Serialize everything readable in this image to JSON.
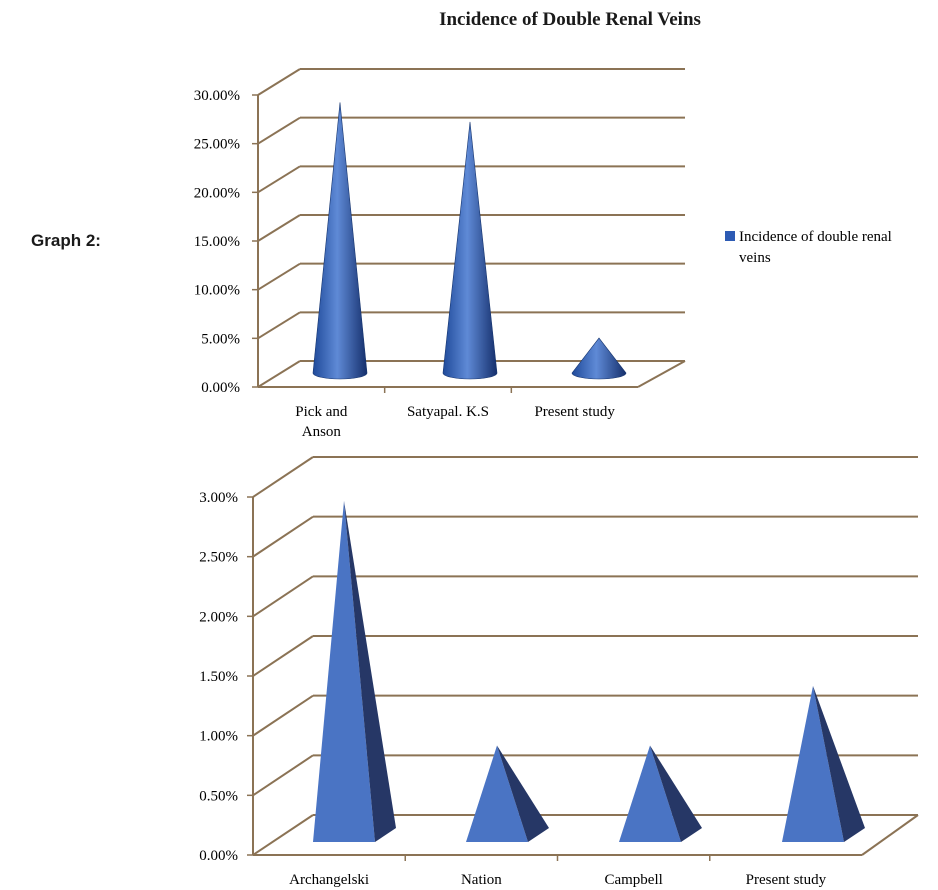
{
  "figure": {
    "title": "Incidence of Double Renal Veins",
    "graph_label": "Graph 2:"
  },
  "colors": {
    "grid": "#8b7355",
    "cone_light": "#6f95d6",
    "cone_mid": "#2d5bb4",
    "cone_dark": "#13306e",
    "pyramid_front": "#4a74c4",
    "pyramid_side": "#263766"
  },
  "chart_data": [
    {
      "type": "bar",
      "shape": "cone",
      "title": "",
      "categories": [
        [
          "Pick and",
          "Anson"
        ],
        [
          "Satyapal. K.S"
        ],
        [
          "Present study"
        ]
      ],
      "series": [
        {
          "name": "Incidence of double renal veins",
          "values": [
            0.28,
            0.26,
            0.038
          ]
        }
      ],
      "ylim": [
        0,
        0.3
      ],
      "yticks": [
        "0.00%",
        "5.00%",
        "10.00%",
        "15.00%",
        "20.00%",
        "25.00%",
        "30.00%"
      ],
      "grid": true,
      "legend_position": "right",
      "legend": {
        "label_lines": [
          "Incidence of double renal",
          "veins"
        ]
      }
    },
    {
      "type": "bar",
      "shape": "pyramid",
      "title": "",
      "categories": [
        [
          "Archangelski"
        ],
        [
          "Nation"
        ],
        [
          "Campbell"
        ],
        [
          "Present study"
        ]
      ],
      "series": [
        {
          "values": [
            0.028,
            0.0075,
            0.0075,
            0.0125
          ]
        }
      ],
      "ylim": [
        0,
        0.03
      ],
      "yticks": [
        "0.00%",
        "0.50%",
        "1.00%",
        "1.50%",
        "2.00%",
        "2.50%",
        "3.00%"
      ],
      "grid": true,
      "legend_position": "none"
    }
  ]
}
